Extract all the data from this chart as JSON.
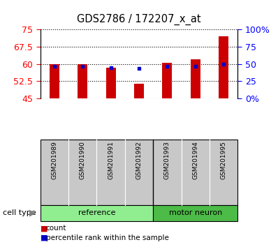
{
  "title": "GDS2786 / 172207_x_at",
  "samples": [
    "GSM201989",
    "GSM201990",
    "GSM201991",
    "GSM201992",
    "GSM201993",
    "GSM201994",
    "GSM201995"
  ],
  "red_values": [
    60.0,
    60.0,
    58.5,
    51.5,
    60.5,
    62.0,
    72.0
  ],
  "blue_pct": [
    47,
    47,
    45,
    44,
    47,
    47,
    50
  ],
  "ymin": 45,
  "ymax": 75,
  "yticks_left": [
    45,
    52.5,
    60,
    67.5,
    75
  ],
  "yticks_left_labels": [
    "45",
    "52.5",
    "60",
    "67.5",
    "75"
  ],
  "pct_ticks": [
    0,
    25,
    50,
    75,
    100
  ],
  "pct_tick_labels": [
    "0%",
    "25",
    "50",
    "75",
    "100%"
  ],
  "bar_color": "#CC0000",
  "dot_color": "#0000CC",
  "bar_width": 0.35,
  "group_ref_color": "#90EE90",
  "group_mn_color": "#4CBB47",
  "label_bg": "#C8C8C8",
  "ref_label": "reference",
  "mn_label": "motor neuron",
  "cell_type_label": "cell type",
  "legend_count": "count",
  "legend_pct": "percentile rank within the sample"
}
